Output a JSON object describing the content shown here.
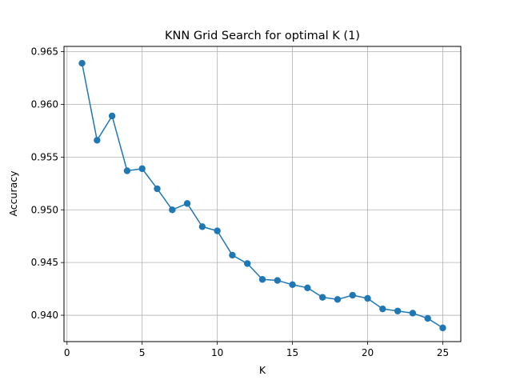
{
  "chart_data": {
    "type": "line",
    "title": "KNN Grid Search for optimal K (1)",
    "xlabel": "K",
    "ylabel": "Accuracy",
    "grid": true,
    "marker": "circle",
    "color": "#1f77b4",
    "xlim": [
      -0.2,
      26.2
    ],
    "ylim": [
      0.9375,
      0.9655
    ],
    "xticks": [
      0,
      5,
      10,
      15,
      20,
      25
    ],
    "xtick_labels": [
      "0",
      "5",
      "10",
      "15",
      "20",
      "25"
    ],
    "yticks": [
      0.94,
      0.945,
      0.95,
      0.955,
      0.96,
      0.965
    ],
    "ytick_labels": [
      "0.940",
      "0.945",
      "0.950",
      "0.955",
      "0.960",
      "0.965"
    ],
    "x": [
      1,
      2,
      3,
      4,
      5,
      6,
      7,
      8,
      9,
      10,
      11,
      12,
      13,
      14,
      15,
      16,
      17,
      18,
      19,
      20,
      21,
      22,
      23,
      24,
      25
    ],
    "y": [
      0.9639,
      0.9566,
      0.9589,
      0.9537,
      0.9539,
      0.952,
      0.95,
      0.9506,
      0.9484,
      0.948,
      0.9457,
      0.9449,
      0.9434,
      0.9433,
      0.9429,
      0.9426,
      0.9417,
      0.9415,
      0.9419,
      0.9416,
      0.9406,
      0.9404,
      0.9402,
      0.9397,
      0.9388
    ]
  }
}
